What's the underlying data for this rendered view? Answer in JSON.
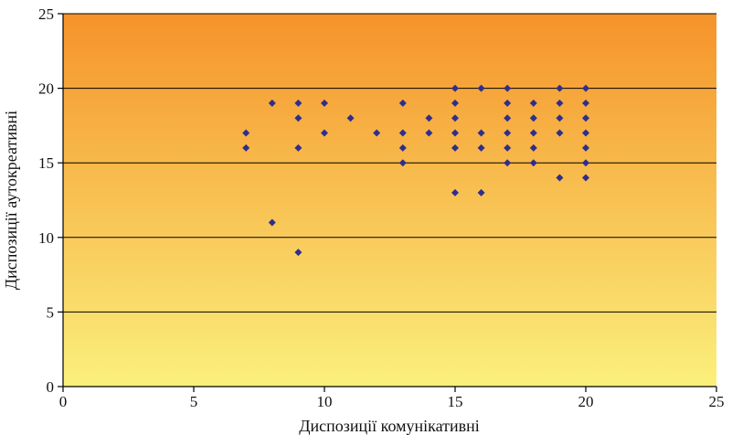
{
  "chart_data": {
    "type": "scatter",
    "title": "",
    "xlabel": "Диспозиції комунікативні",
    "ylabel": "Диспозиції аутокреативні",
    "xlim": [
      0,
      25
    ],
    "ylim": [
      0,
      25
    ],
    "xticks": [
      0,
      5,
      10,
      15,
      20,
      25
    ],
    "yticks": [
      0,
      5,
      10,
      15,
      20,
      25
    ],
    "grid": "horizontal",
    "legend": "none",
    "colors": {
      "background_top": "#F5932A",
      "background_bottom": "#FBF07C",
      "marker": "#2E2E8F",
      "gridline": "#000000"
    },
    "points": [
      {
        "x": 7,
        "y": 17
      },
      {
        "x": 7,
        "y": 16
      },
      {
        "x": 8,
        "y": 19
      },
      {
        "x": 8,
        "y": 11
      },
      {
        "x": 9,
        "y": 19
      },
      {
        "x": 9,
        "y": 18
      },
      {
        "x": 9,
        "y": 16
      },
      {
        "x": 9,
        "y": 9
      },
      {
        "x": 10,
        "y": 19
      },
      {
        "x": 10,
        "y": 17
      },
      {
        "x": 11,
        "y": 18
      },
      {
        "x": 12,
        "y": 17
      },
      {
        "x": 13,
        "y": 19
      },
      {
        "x": 13,
        "y": 17
      },
      {
        "x": 13,
        "y": 16
      },
      {
        "x": 13,
        "y": 15
      },
      {
        "x": 14,
        "y": 18
      },
      {
        "x": 14,
        "y": 17
      },
      {
        "x": 15,
        "y": 20
      },
      {
        "x": 15,
        "y": 19
      },
      {
        "x": 15,
        "y": 18
      },
      {
        "x": 15,
        "y": 17
      },
      {
        "x": 15,
        "y": 16
      },
      {
        "x": 15,
        "y": 13
      },
      {
        "x": 16,
        "y": 20
      },
      {
        "x": 16,
        "y": 17
      },
      {
        "x": 16,
        "y": 16
      },
      {
        "x": 16,
        "y": 13
      },
      {
        "x": 17,
        "y": 20
      },
      {
        "x": 17,
        "y": 19
      },
      {
        "x": 17,
        "y": 18
      },
      {
        "x": 17,
        "y": 17
      },
      {
        "x": 17,
        "y": 16
      },
      {
        "x": 17,
        "y": 15
      },
      {
        "x": 18,
        "y": 19
      },
      {
        "x": 18,
        "y": 18
      },
      {
        "x": 18,
        "y": 17
      },
      {
        "x": 18,
        "y": 16
      },
      {
        "x": 18,
        "y": 15
      },
      {
        "x": 19,
        "y": 20
      },
      {
        "x": 19,
        "y": 19
      },
      {
        "x": 19,
        "y": 18
      },
      {
        "x": 19,
        "y": 17
      },
      {
        "x": 19,
        "y": 14
      },
      {
        "x": 20,
        "y": 20
      },
      {
        "x": 20,
        "y": 19
      },
      {
        "x": 20,
        "y": 18
      },
      {
        "x": 20,
        "y": 17
      },
      {
        "x": 20,
        "y": 16
      },
      {
        "x": 20,
        "y": 15
      },
      {
        "x": 20,
        "y": 14
      }
    ]
  }
}
